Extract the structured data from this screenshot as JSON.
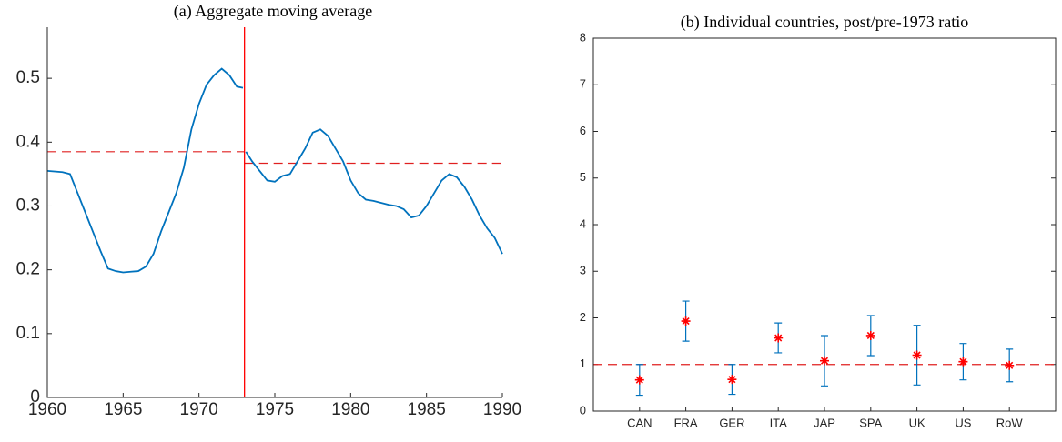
{
  "chart_data": [
    {
      "type": "line",
      "title": "(a) Aggregate moving average",
      "x": [
        1960,
        1961,
        1961.5,
        1962,
        1962.5,
        1963,
        1963.5,
        1964,
        1964.5,
        1965,
        1965.5,
        1966,
        1966.5,
        1967,
        1967.5,
        1968,
        1968.5,
        1969,
        1969.5,
        1970,
        1970.5,
        1971,
        1971.5,
        1972,
        1972.5,
        1972.9,
        1973,
        1973.1,
        1973.5,
        1974,
        1974.5,
        1975,
        1975.5,
        1976,
        1976.5,
        1977,
        1977.5,
        1978,
        1978.5,
        1979,
        1979.5,
        1980,
        1980.5,
        1981,
        1981.5,
        1982,
        1982.5,
        1983,
        1983.5,
        1984,
        1984.5,
        1985,
        1985.5,
        1986,
        1986.5,
        1987,
        1987.5,
        1988,
        1988.5,
        1989,
        1989.5,
        1990
      ],
      "series": [
        {
          "color": "#0072bd",
          "values": [
            0.355,
            0.353,
            0.35,
            0.32,
            0.29,
            0.26,
            0.23,
            0.202,
            0.198,
            0.196,
            0.197,
            0.198,
            0.205,
            0.225,
            0.26,
            0.29,
            0.32,
            0.36,
            0.42,
            0.46,
            0.49,
            0.505,
            0.515,
            0.505,
            0.487,
            0.485,
            null,
            0.385,
            0.37,
            0.355,
            0.34,
            0.338,
            0.347,
            0.35,
            0.37,
            0.39,
            0.415,
            0.42,
            0.41,
            0.39,
            0.37,
            0.34,
            0.32,
            0.31,
            0.308,
            0.305,
            0.302,
            0.3,
            0.295,
            0.282,
            0.285,
            0.3,
            0.32,
            0.34,
            0.35,
            0.345,
            0.33,
            0.31,
            0.285,
            0.265,
            0.25,
            0.225
          ]
        }
      ],
      "hlines": [
        {
          "value": 0.385,
          "xrange": [
            1960,
            1973
          ],
          "color": "#e02020"
        },
        {
          "value": 0.367,
          "xrange": [
            1973,
            1990
          ],
          "color": "#e02020"
        }
      ],
      "vline": {
        "value": 1973,
        "color": "#ff0000"
      },
      "xlim": [
        1960,
        1990
      ],
      "xticks": [
        1960,
        1965,
        1970,
        1975,
        1980,
        1985,
        1990
      ],
      "ylim": [
        0,
        0.58
      ],
      "yticks": [
        0,
        0.1,
        0.2,
        0.3,
        0.4,
        0.5
      ]
    },
    {
      "type": "errorbar",
      "title": "(b) Individual countries, post/pre-1973 ratio",
      "categories": [
        "CAN",
        "FRA",
        "GER",
        "ITA",
        "JAP",
        "SPA",
        "UK",
        "US",
        "RoW"
      ],
      "values": [
        0.67,
        1.93,
        0.68,
        1.57,
        1.08,
        1.62,
        1.2,
        1.06,
        0.98
      ],
      "errors": [
        0.33,
        0.43,
        0.32,
        0.32,
        0.54,
        0.43,
        0.64,
        0.39,
        0.35
      ],
      "color": "#ff0000",
      "error_color": "#0072bd",
      "hlines": [
        {
          "value": 1,
          "color": "#e02020"
        }
      ],
      "ylim": [
        0,
        8
      ],
      "yticks": [
        0,
        1,
        2,
        3,
        4,
        5,
        6,
        7,
        8
      ]
    }
  ]
}
